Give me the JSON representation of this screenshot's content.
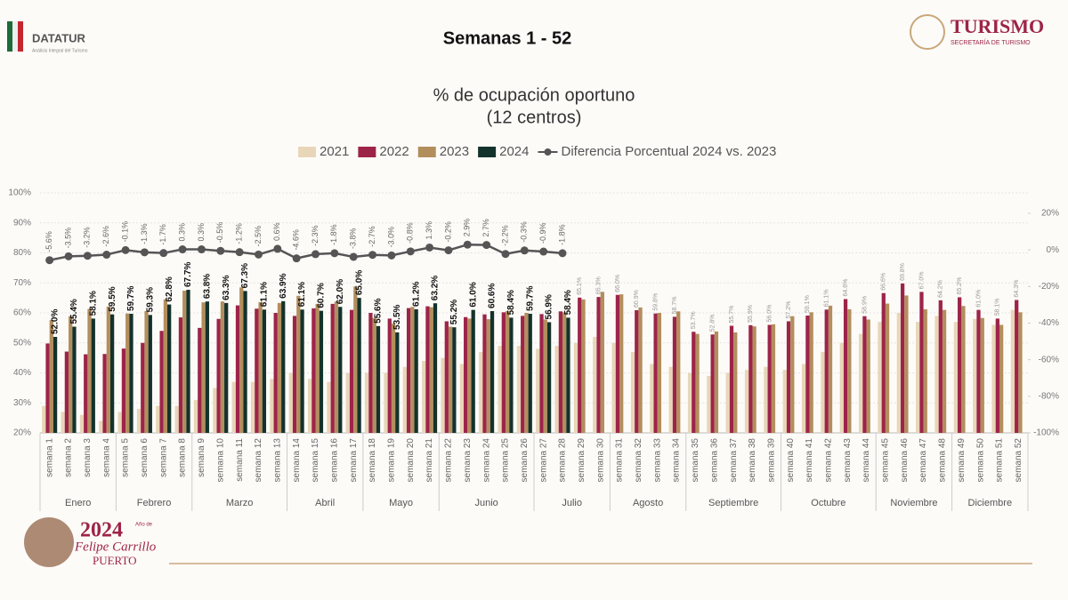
{
  "header": {
    "brand": "DATATUR",
    "brand_sub": "Análisis Integral del Turismo",
    "heading": "Semanas 1 - 52",
    "ministry": "TURISMO",
    "ministry_sub": "SECRETARÍA DE TURISMO"
  },
  "footer": {
    "year": "2024",
    "line1": "Año de",
    "line2": "Felipe Carrillo",
    "line3": "PUERTO"
  },
  "chart_data": {
    "type": "bar",
    "title": "% de ocupación oportuno",
    "subtitle": "(12 centros)",
    "categories": [
      "semana 1",
      "semana 2",
      "semana 3",
      "semana 4",
      "semana 5",
      "semana 6",
      "semana 7",
      "semana 8",
      "semana 9",
      "semana 10",
      "semana 11",
      "semana 12",
      "semana 13",
      "semana 14",
      "semana 15",
      "semana 16",
      "semana 17",
      "semana 18",
      "semana 19",
      "semana 20",
      "semana 21",
      "semana 22",
      "semana 23",
      "semana 24",
      "semana 25",
      "semana 26",
      "semana 27",
      "semana 28",
      "semana 29",
      "semana 30",
      "semana 31",
      "semana 32",
      "semana 33",
      "semana 34",
      "semana 35",
      "semana 36",
      "semana 37",
      "semana 38",
      "semana 39",
      "semana 40",
      "semana 41",
      "semana 42",
      "semana 43",
      "semana 44",
      "semana 45",
      "semana 46",
      "semana 47",
      "semana 48",
      "semana 49",
      "semana 50",
      "semana 51",
      "semana 52"
    ],
    "months": [
      {
        "label": "Enero",
        "weeks": 4
      },
      {
        "label": "Febrero",
        "weeks": 4
      },
      {
        "label": "Marzo",
        "weeks": 5
      },
      {
        "label": "Abril",
        "weeks": 4
      },
      {
        "label": "Mayo",
        "weeks": 4
      },
      {
        "label": "Junio",
        "weeks": 5
      },
      {
        "label": "Julio",
        "weeks": 4
      },
      {
        "label": "Agosto",
        "weeks": 4
      },
      {
        "label": "Septiembre",
        "weeks": 5
      },
      {
        "label": "Octubre",
        "weeks": 5
      },
      {
        "label": "Noviembre",
        "weeks": 4
      },
      {
        "label": "Diciembre",
        "weeks": 4
      }
    ],
    "series": [
      {
        "name": "2021",
        "color": "#e8d6b8",
        "values": [
          29,
          27,
          26,
          24,
          27,
          28,
          29,
          29,
          31,
          35,
          37,
          37,
          38,
          40,
          38,
          37,
          40,
          40,
          40,
          42,
          44,
          45,
          43,
          47,
          49,
          49,
          48,
          49,
          50,
          52,
          50,
          47,
          43,
          42,
          40,
          39,
          40,
          41,
          42,
          41,
          43,
          47,
          50,
          53,
          57,
          60,
          57,
          59,
          57,
          58,
          56,
          61
        ]
      },
      {
        "name": "2022",
        "color": "#9d2449",
        "values": [
          49.8,
          47.1,
          46.2,
          46.3,
          48.1,
          50.0,
          54.0,
          58.5,
          55.0,
          58.0,
          62.5,
          61.4,
          60.0,
          59.0,
          61.5,
          63.0,
          61.0,
          60.0,
          58.1,
          61.6,
          62.2,
          57.2,
          58.6,
          59.5,
          60.2,
          59.0,
          59.6,
          60.5,
          65.1,
          65.3,
          66.0,
          60.9,
          59.8,
          58.7,
          53.7,
          52.8,
          55.7,
          55.9,
          56.0,
          57.2,
          59.1,
          61.1,
          64.6,
          58.9,
          66.6,
          69.8,
          67.0,
          64.2,
          65.2,
          61.0,
          58.1,
          64.3
        ],
        "value_labels": [
          null,
          null,
          null,
          null,
          null,
          null,
          null,
          null,
          null,
          null,
          null,
          null,
          null,
          null,
          null,
          null,
          null,
          null,
          null,
          null,
          null,
          null,
          null,
          null,
          null,
          null,
          null,
          null,
          "65.1%",
          "65.3%",
          "66.0%",
          "60.9%",
          "59.8%",
          "58.7%",
          "53.7%",
          "52.8%",
          "55.7%",
          "55.9%",
          "56.0%",
          "57.2%",
          "59.1%",
          "61.1%",
          "64.6%",
          "58.9%",
          "66.6%",
          "69.8%",
          "67.0%",
          "64.2%",
          "65.2%",
          "61.0%",
          "58.1%",
          "64.3%"
        ]
      },
      {
        "name": "2023",
        "color": "#b38e5d",
        "values": [
          57.6,
          58.9,
          61.3,
          62.1,
          59.8,
          60.6,
          64.5,
          67.4,
          63.5,
          63.8,
          68.5,
          63.6,
          63.3,
          65.7,
          63.0,
          63.8,
          68.8,
          58.3,
          56.5,
          62.0,
          61.9,
          55.4,
          58.1,
          57.9,
          60.6,
          60.0,
          57.8,
          60.2,
          64.5,
          67.0,
          66.2,
          61.8,
          60.0,
          60.5,
          53.0,
          53.8,
          53.5,
          55.5,
          56.2,
          58.9,
          60.2,
          62.4,
          61.2,
          57.8,
          63.1,
          65.8,
          61.2,
          61.0,
          62.3,
          58.3,
          56.0,
          60.2
        ]
      },
      {
        "name": "2024",
        "color": "#13322b",
        "values": [
          52.0,
          55.4,
          58.1,
          59.5,
          59.7,
          59.3,
          62.8,
          67.7,
          63.8,
          63.3,
          67.3,
          61.1,
          63.9,
          61.1,
          60.7,
          62.0,
          65.0,
          55.6,
          53.5,
          61.2,
          63.2,
          55.2,
          61.0,
          60.6,
          58.4,
          59.7,
          56.9,
          58.4,
          null,
          null,
          null,
          null,
          null,
          null,
          null,
          null,
          null,
          null,
          null,
          null,
          null,
          null,
          null,
          null,
          null,
          null,
          null,
          null,
          null,
          null,
          null,
          null
        ],
        "value_labels": [
          "52.0%",
          "55.4%",
          "58.1%",
          "59.5%",
          "59.7%",
          "59.3%",
          "62.8%",
          "67.7%",
          "63.8%",
          "63.3%",
          "67.3%",
          "61.1%",
          "63.9%",
          "61.1%",
          "60.7%",
          "62.0%",
          "65.0%",
          "55.6%",
          "53.5%",
          "61.2%",
          "63.2%",
          "55.2%",
          "61.0%",
          "60.6%",
          "58.4%",
          "59.7%",
          "56.9%",
          "58.4%",
          null,
          null,
          null,
          null,
          null,
          null,
          null,
          null,
          null,
          null,
          null,
          null,
          null,
          null,
          null,
          null,
          null,
          null,
          null,
          null,
          null,
          null,
          null,
          null
        ]
      },
      {
        "name": "Diferencia Porcentual 2024 vs. 2023",
        "color": "#555555",
        "type": "line",
        "axis": "y2",
        "values": [
          -5.6,
          -3.5,
          -3.2,
          -2.6,
          -0.1,
          -1.3,
          -1.7,
          0.3,
          0.3,
          -0.5,
          -1.2,
          -2.5,
          0.6,
          -4.6,
          -2.3,
          -1.8,
          -3.8,
          -2.7,
          -3.0,
          -0.8,
          1.3,
          -0.2,
          2.9,
          2.7,
          -2.2,
          -0.3,
          -0.9,
          -1.8,
          null,
          null,
          null,
          null,
          null,
          null,
          null,
          null,
          null,
          null,
          null,
          null,
          null,
          null,
          null,
          null,
          null,
          null,
          null,
          null,
          null,
          null,
          null,
          null
        ],
        "value_labels": [
          "-5.6%",
          "-3.5%",
          "-3.2%",
          "-2.6%",
          "-0.1%",
          "-1.3%",
          "-1.7%",
          "0.3%",
          "0.3%",
          "-0.5%",
          "-1.2%",
          "-2.5%",
          "0.6%",
          "-4.6%",
          "-2.3%",
          "-1.8%",
          "-3.8%",
          "-2.7%",
          "-3.0%",
          "-0.8%",
          "1.3%",
          "-0.2%",
          "2.9%",
          "2.7%",
          "-2.2%",
          "-0.3%",
          "-0.9%",
          "-1.8%",
          null,
          null,
          null,
          null,
          null,
          null,
          null,
          null,
          null,
          null,
          null,
          null,
          null,
          null,
          null,
          null,
          null,
          null,
          null,
          null,
          null,
          null,
          null,
          null
        ]
      }
    ],
    "ylim": [
      20,
      100
    ],
    "yticks": [
      {
        "value": 20,
        "label": "20%"
      },
      {
        "value": 30,
        "label": "30%"
      },
      {
        "value": 40,
        "label": "40%"
      },
      {
        "value": 50,
        "label": "50%"
      },
      {
        "value": 60,
        "label": "60%"
      },
      {
        "value": 70,
        "label": "70%"
      },
      {
        "value": 80,
        "label": "80%"
      },
      {
        "value": 90,
        "label": "90%"
      },
      {
        "value": 100,
        "label": "100%"
      }
    ],
    "y2lim": [
      -100,
      20
    ],
    "y2ticks": [
      {
        "value": -100,
        "label": "-100%"
      },
      {
        "value": -80,
        "label": "-80%"
      },
      {
        "value": -60,
        "label": "-60%"
      },
      {
        "value": -40,
        "label": "-40%"
      },
      {
        "value": -20,
        "label": "-20%"
      },
      {
        "value": 0,
        "label": "0%"
      },
      {
        "value": 20,
        "label": "20%"
      }
    ],
    "grid": true,
    "legend": "top"
  }
}
